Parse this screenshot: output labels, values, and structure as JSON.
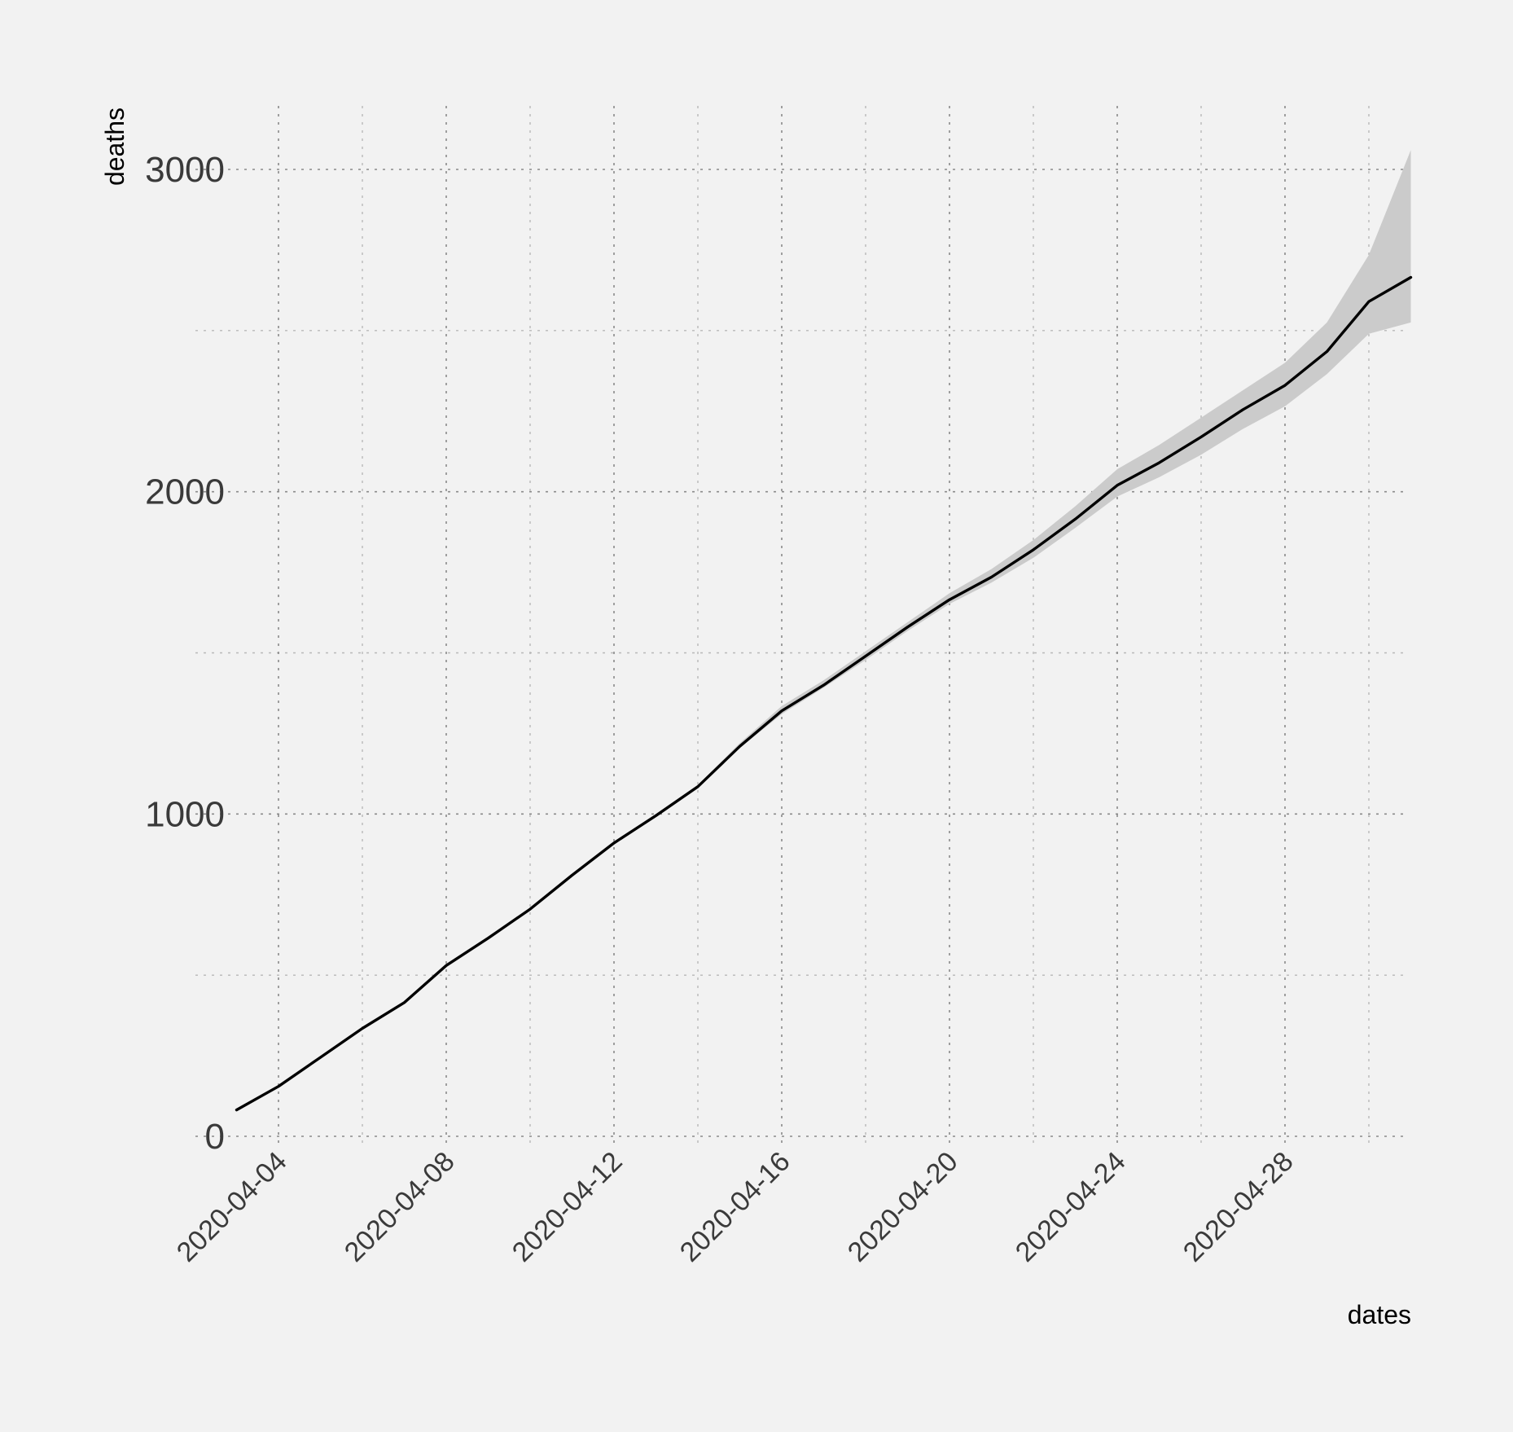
{
  "chart_data": {
    "type": "line",
    "title": "",
    "xlabel": "dates",
    "ylabel": "deaths",
    "ylim": [
      0,
      3000
    ],
    "xlim": [
      "2020-04-03",
      "2020-05-01"
    ],
    "grid": true,
    "x_ticks": [
      "2020-04-04",
      "2020-04-08",
      "2020-04-12",
      "2020-04-16",
      "2020-04-20",
      "2020-04-24",
      "2020-04-28"
    ],
    "y_ticks": [
      0,
      1000,
      2000,
      3000
    ],
    "x_tick_labels": [
      "2020-04-04",
      "2020-04-08",
      "2020-04-12",
      "2020-04-16",
      "2020-04-20",
      "2020-04-24",
      "2020-04-28"
    ],
    "y_tick_labels": [
      "0",
      "1000",
      "2000",
      "3000"
    ],
    "colors": {
      "background": "#f2f2f2",
      "line": "#000000",
      "band": "#cbcbcb",
      "grid": "#8a8a8a"
    },
    "series": [
      {
        "x": [
          "2020-04-03",
          "2020-04-04",
          "2020-04-05",
          "2020-04-06",
          "2020-04-07",
          "2020-04-08",
          "2020-04-09",
          "2020-04-10",
          "2020-04-11",
          "2020-04-12",
          "2020-04-13",
          "2020-04-14",
          "2020-04-15",
          "2020-04-16",
          "2020-04-17",
          "2020-04-18",
          "2020-04-19",
          "2020-04-20",
          "2020-04-21",
          "2020-04-22",
          "2020-04-23",
          "2020-04-24",
          "2020-04-25",
          "2020-04-26",
          "2020-04-27",
          "2020-04-28",
          "2020-04-29",
          "2020-04-30",
          "2020-05-01"
        ],
        "values": [
          82,
          155,
          245,
          335,
          415,
          530,
          615,
          705,
          810,
          910,
          995,
          1085,
          1210,
          1320,
          1400,
          1490,
          1580,
          1665,
          1735,
          1820,
          1915,
          2020,
          2090,
          2170,
          2255,
          2330,
          2435,
          2590,
          2665
        ],
        "upper": [
          82,
          155,
          245,
          335,
          415,
          530,
          615,
          705,
          810,
          910,
          995,
          1090,
          1220,
          1335,
          1415,
          1505,
          1595,
          1685,
          1760,
          1850,
          1955,
          2070,
          2145,
          2230,
          2315,
          2400,
          2525,
          2735,
          3060
        ],
        "lower": [
          82,
          155,
          245,
          335,
          415,
          530,
          615,
          705,
          810,
          910,
          995,
          1082,
          1205,
          1310,
          1392,
          1478,
          1568,
          1652,
          1718,
          1795,
          1888,
          1985,
          2045,
          2115,
          2195,
          2265,
          2365,
          2490,
          2525
        ]
      }
    ]
  }
}
